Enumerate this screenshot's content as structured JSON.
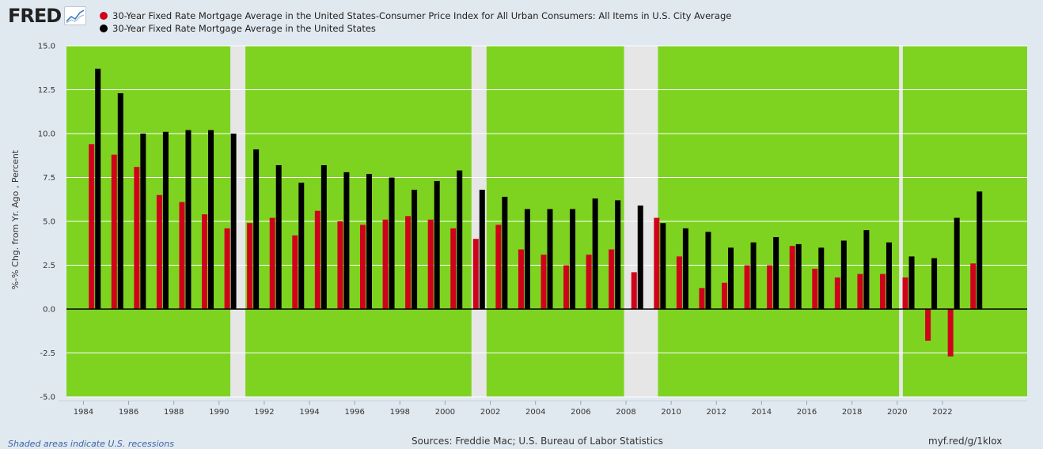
{
  "header": {
    "logo_text": "FRED",
    "logo_icon": "line-graph-icon"
  },
  "footer": {
    "recession_note": "Shaded areas indicate U.S. recessions",
    "sources": "Sources: Freddie Mac; U.S. Bureau of Labor Statistics",
    "short_url": "myf.red/g/1klox"
  },
  "colors": {
    "plot_background": "#7ed321",
    "recession_shading": "#e6e6e6",
    "page_background": "#e1e9f0"
  },
  "chart_data": {
    "type": "bar",
    "title": "",
    "ylabel": "%-% Chg. from Yr. Ago , Percent",
    "xlabel": "",
    "ylim": [
      -5.0,
      15.0
    ],
    "yticks": [
      "15.0",
      "12.5",
      "10.0",
      "7.5",
      "5.0",
      "2.5",
      "0.0",
      "-2.5",
      "-5.0"
    ],
    "xticks": [
      "1984",
      "1986",
      "1988",
      "1990",
      "1992",
      "1994",
      "1996",
      "1998",
      "2000",
      "2002",
      "2004",
      "2006",
      "2008",
      "2010",
      "2012",
      "2014",
      "2016",
      "2018",
      "2020",
      "2022"
    ],
    "categories": [
      "1984",
      "1985",
      "1986",
      "1987",
      "1988",
      "1989",
      "1990",
      "1991",
      "1992",
      "1993",
      "1994",
      "1995",
      "1996",
      "1997",
      "1998",
      "1999",
      "2000",
      "2001",
      "2002",
      "2003",
      "2004",
      "2005",
      "2006",
      "2007",
      "2008",
      "2009",
      "2010",
      "2011",
      "2012",
      "2013",
      "2014",
      "2015",
      "2016",
      "2017",
      "2018",
      "2019",
      "2020",
      "2021",
      "2022",
      "2023"
    ],
    "series": [
      {
        "name": "30-Year Fixed Rate Mortgage Average in the United States-Consumer Price Index for All Urban Consumers: All Items in U.S. City Average",
        "color": "#d0021b",
        "values": [
          9.4,
          8.8,
          8.1,
          6.5,
          6.1,
          5.4,
          4.6,
          4.9,
          5.2,
          4.2,
          5.6,
          5.0,
          4.8,
          5.1,
          5.3,
          5.1,
          4.6,
          4.0,
          4.8,
          3.4,
          3.1,
          2.5,
          3.1,
          3.4,
          2.1,
          5.2,
          3.0,
          1.2,
          1.5,
          2.5,
          2.5,
          3.6,
          2.3,
          1.8,
          2.0,
          2.0,
          1.8,
          -1.8,
          -2.7,
          2.6
        ]
      },
      {
        "name": "30-Year Fixed Rate Mortgage Average in the United States",
        "color": "#000000",
        "values": [
          13.7,
          12.3,
          10.0,
          10.1,
          10.2,
          10.2,
          10.0,
          9.1,
          8.2,
          7.2,
          8.2,
          7.8,
          7.7,
          7.5,
          6.8,
          7.3,
          7.9,
          6.8,
          6.4,
          5.7,
          5.7,
          5.7,
          6.3,
          6.2,
          5.9,
          4.9,
          4.6,
          4.4,
          3.5,
          3.8,
          4.1,
          3.7,
          3.5,
          3.9,
          4.5,
          3.8,
          3.0,
          2.9,
          5.2,
          6.7
        ]
      }
    ],
    "recessions": [
      [
        "1990-07",
        "1991-03"
      ],
      [
        "2001-03",
        "2001-11"
      ],
      [
        "2007-12",
        "2009-06"
      ],
      [
        "2020-02",
        "2020-04"
      ]
    ],
    "x_range": [
      "1983-04",
      "1984-01",
      "2025-10"
    ],
    "grid": true,
    "legend_position": "top-left"
  }
}
